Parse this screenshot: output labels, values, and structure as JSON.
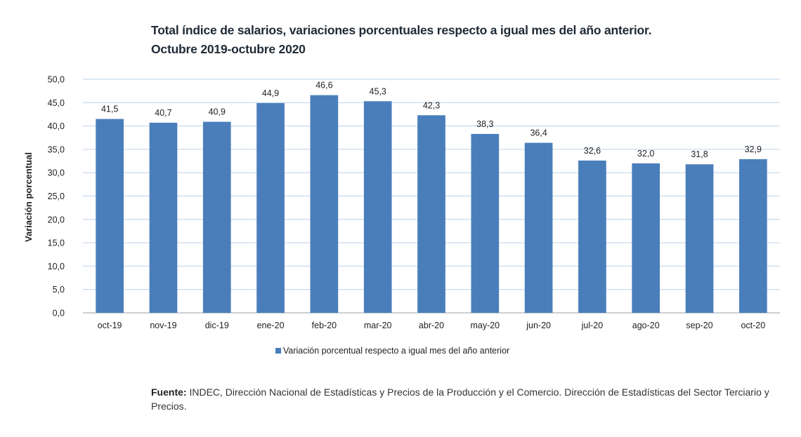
{
  "chart_data": {
    "type": "bar",
    "title": "Total índice de salarios, variaciones porcentuales respecto a igual mes del año anterior.",
    "subtitle": "Octubre 2019-octubre 2020",
    "ylabel": "Variación porcentual",
    "xlabel": "",
    "categories": [
      "oct-19",
      "nov-19",
      "dic-19",
      "ene-20",
      "feb-20",
      "mar-20",
      "abr-20",
      "may-20",
      "jun-20",
      "jul-20",
      "ago-20",
      "sep-20",
      "oct-20"
    ],
    "series": [
      {
        "name": "Variación porcentual respecto a igual mes del año anterior",
        "values": [
          41.5,
          40.7,
          40.9,
          44.9,
          46.6,
          45.3,
          42.3,
          38.3,
          36.4,
          32.6,
          32.0,
          31.8,
          32.9
        ],
        "labels": [
          "41,5",
          "40,7",
          "40,9",
          "44,9",
          "46,6",
          "45,3",
          "42,3",
          "38,3",
          "36,4",
          "32,6",
          "32,0",
          "31,8",
          "32,9"
        ]
      }
    ],
    "ylim": [
      0,
      50
    ],
    "yticks": [
      "0,0",
      "5,0",
      "10,0",
      "15,0",
      "20,0",
      "25,0",
      "30,0",
      "35,0",
      "40,0",
      "45,0",
      "50,0"
    ],
    "grid": true,
    "legend": "bottom",
    "colors": {
      "bar": "#4a7ebb",
      "grid": "#bcd3ec",
      "axis": "#9aa0a6",
      "text": "#222222"
    }
  },
  "source": {
    "label": "Fuente:",
    "text": " INDEC, Dirección Nacional de Estadísticas y Precios de la Producción y el Comercio. Dirección de Estadísticas del Sector Terciario y Precios."
  }
}
